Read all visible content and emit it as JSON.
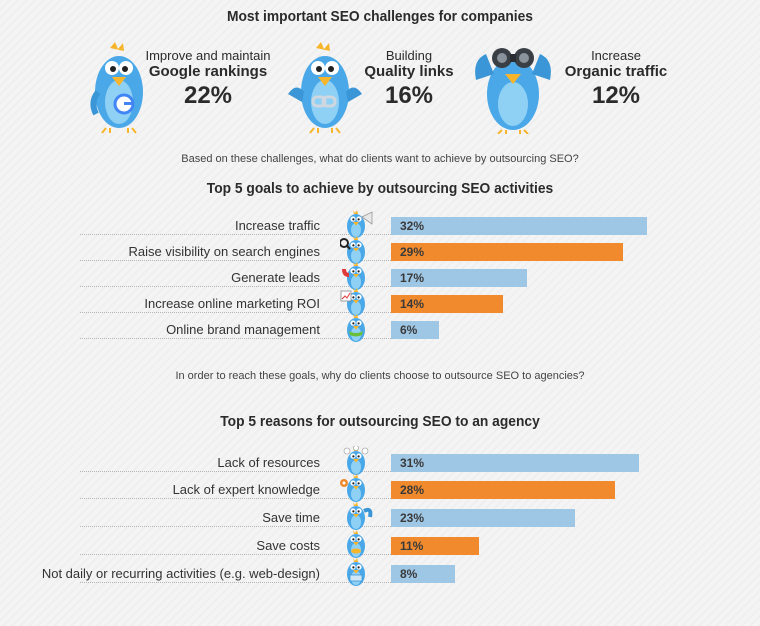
{
  "header": {
    "title": "Most important SEO challenges for companies",
    "stats": [
      {
        "line1": "Improve and maintain",
        "line2": "Google rankings",
        "pct": "22%"
      },
      {
        "line1": "Building",
        "line2": "Quality links",
        "pct": "16%"
      },
      {
        "line1": "Increase",
        "line2": "Organic traffic",
        "pct": "12%"
      }
    ]
  },
  "questions": {
    "q1": "Based on these challenges, what do clients want to achieve by outsourcing SEO?",
    "q2": "In order to reach these goals, why do clients choose to outsource SEO to agencies?"
  },
  "colors": {
    "blue": "#9ec6e5",
    "orange": "#f08a2c",
    "bird_blue": "#4aa8e8",
    "beak": "#f7b52b"
  },
  "chart_data": [
    {
      "type": "bar",
      "orientation": "horizontal",
      "title": "Top 5 goals to achieve by outsourcing SEO activities",
      "categories": [
        "Increase traffic",
        "Raise visibility on search engines",
        "Generate leads",
        "Increase online marketing ROI",
        "Online brand management"
      ],
      "values": [
        32,
        29,
        17,
        14,
        6
      ],
      "labels": [
        "32%",
        "29%",
        "17%",
        "14%",
        "6%"
      ],
      "bar_colors": [
        "blue",
        "orange",
        "blue",
        "orange",
        "blue"
      ],
      "xlim": [
        0,
        34
      ]
    },
    {
      "type": "bar",
      "orientation": "horizontal",
      "title": "Top 5 reasons for outsourcing SEO to an agency",
      "categories": [
        "Lack of resources",
        "Lack of expert knowledge",
        "Save time",
        "Save costs",
        "Not daily or recurring activities (e.g. web-design)"
      ],
      "values": [
        31,
        28,
        23,
        11,
        8
      ],
      "labels": [
        "31%",
        "28%",
        "23%",
        "11%",
        "8%"
      ],
      "bar_colors": [
        "blue",
        "orange",
        "blue",
        "orange",
        "blue"
      ],
      "xlim": [
        0,
        34
      ]
    }
  ]
}
